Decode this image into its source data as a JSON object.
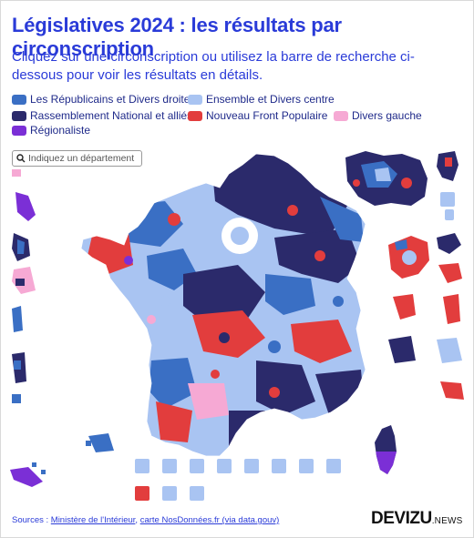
{
  "header": {
    "title": "Législatives 2024 : les résultats par circonscription",
    "subtitle": "Cliquez sur une circonscription ou utilisez la barre de recherche ci-dessous pour voir les résultats en détails."
  },
  "legend": [
    {
      "label": "Les Républicains et Divers droite",
      "color": "#3a6fc4"
    },
    {
      "label": "Ensemble et Divers centre",
      "color": "#a9c4f2"
    },
    {
      "label": "Rassemblement National et alliés",
      "color": "#2b2a6b"
    },
    {
      "label": "Nouveau Front Populaire",
      "color": "#e23d3d"
    },
    {
      "label": "Divers gauche",
      "color": "#f6a9d4"
    },
    {
      "label": "Régionaliste",
      "color": "#7b2fd6"
    }
  ],
  "search": {
    "placeholder": "Indiquez un département",
    "icon": "search-icon"
  },
  "footer": {
    "sources_prefix": "Sources : ",
    "source_1": "Ministère de l'Intérieur",
    "separator": ", ",
    "source_2": "carte NosDonnées.fr (via data.gouv)"
  },
  "brand": {
    "name": "DEVIZU",
    "suffix": ".NEWS"
  }
}
